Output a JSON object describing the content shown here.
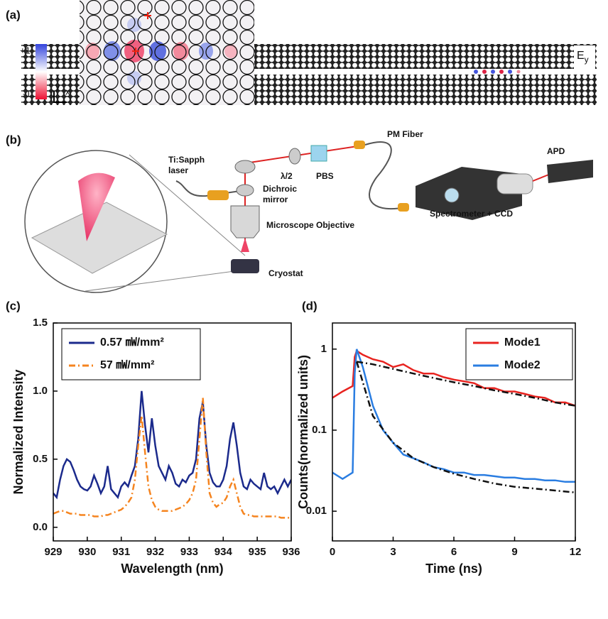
{
  "panel_a": {
    "label": "(a)",
    "colorbar_max": "+1",
    "colorbar_min": "-1",
    "field": "E",
    "field_sub": "y",
    "axis_y": "y",
    "axis_x": "x"
  },
  "panel_b": {
    "label": "(b)",
    "labels": [
      "Ti:Sapph",
      "laser",
      "λ/2",
      "PBS",
      "PM Fiber",
      "APD",
      "Dichroic",
      "mirror",
      "Microscope Objective",
      "Spectrometer + CCD",
      "Cryostat"
    ]
  },
  "chart_data": [
    {
      "type": "line",
      "panel_label": "(c)",
      "x_label": "Wavelength (nm)",
      "y_label": "Normalized Intensity",
      "x": [
        929.0,
        929.1,
        929.2,
        929.3,
        929.4,
        929.5,
        929.6,
        929.7,
        929.8,
        929.9,
        930.0,
        930.1,
        930.2,
        930.3,
        930.4,
        930.5,
        930.6,
        930.7,
        930.8,
        930.9,
        931.0,
        931.1,
        931.2,
        931.3,
        931.4,
        931.5,
        931.6,
        931.7,
        931.8,
        931.9,
        932.0,
        932.1,
        932.2,
        932.3,
        932.4,
        932.5,
        932.6,
        932.7,
        932.8,
        932.9,
        933.0,
        933.1,
        933.2,
        933.3,
        933.4,
        933.5,
        933.6,
        933.7,
        933.8,
        933.9,
        934.0,
        934.1,
        934.2,
        934.3,
        934.4,
        934.5,
        934.6,
        934.7,
        934.8,
        934.9,
        935.0,
        935.1,
        935.2,
        935.3,
        935.4,
        935.5,
        935.6,
        935.7,
        935.8,
        935.9,
        936.0
      ],
      "series": [
        {
          "name": "0.57 ㎽/mm²",
          "color": "#1b2a8c",
          "dash": "solid",
          "values": [
            0.25,
            0.22,
            0.35,
            0.45,
            0.5,
            0.48,
            0.42,
            0.35,
            0.3,
            0.28,
            0.27,
            0.3,
            0.38,
            0.32,
            0.25,
            0.3,
            0.45,
            0.28,
            0.25,
            0.22,
            0.3,
            0.33,
            0.3,
            0.38,
            0.45,
            0.65,
            1.0,
            0.75,
            0.55,
            0.8,
            0.6,
            0.45,
            0.4,
            0.35,
            0.45,
            0.4,
            0.32,
            0.3,
            0.35,
            0.33,
            0.38,
            0.4,
            0.5,
            0.8,
            0.92,
            0.6,
            0.4,
            0.33,
            0.3,
            0.3,
            0.35,
            0.45,
            0.65,
            0.77,
            0.6,
            0.4,
            0.3,
            0.28,
            0.35,
            0.32,
            0.3,
            0.28,
            0.4,
            0.3,
            0.28,
            0.3,
            0.25,
            0.3,
            0.35,
            0.3,
            0.35
          ]
        },
        {
          "name": "57 ㎽/mm²",
          "color": "#f5841f",
          "dash": "dashdot",
          "values": [
            0.1,
            0.11,
            0.12,
            0.12,
            0.11,
            0.1,
            0.1,
            0.1,
            0.09,
            0.09,
            0.09,
            0.09,
            0.08,
            0.08,
            0.08,
            0.09,
            0.09,
            0.1,
            0.11,
            0.12,
            0.13,
            0.15,
            0.18,
            0.22,
            0.35,
            0.6,
            0.82,
            0.55,
            0.3,
            0.2,
            0.15,
            0.13,
            0.12,
            0.12,
            0.12,
            0.12,
            0.13,
            0.14,
            0.15,
            0.17,
            0.2,
            0.25,
            0.35,
            0.65,
            0.95,
            0.55,
            0.25,
            0.18,
            0.15,
            0.17,
            0.18,
            0.22,
            0.3,
            0.35,
            0.25,
            0.15,
            0.1,
            0.09,
            0.09,
            0.08,
            0.08,
            0.08,
            0.08,
            0.08,
            0.08,
            0.08,
            0.08,
            0.07,
            0.07,
            0.07,
            0.07
          ]
        }
      ],
      "xlim": [
        929,
        936
      ],
      "xticks": [
        929,
        930,
        931,
        932,
        933,
        934,
        935,
        936
      ],
      "ylim": [
        -0.1,
        1.5
      ],
      "yticks": [
        {
          "value": 0,
          "label": "0.0"
        },
        0.5,
        {
          "value": 1,
          "label": "1.0"
        },
        1.5
      ],
      "legend": "upper left"
    },
    {
      "type": "line",
      "panel_label": "(d)",
      "x_label": "Time (ns)",
      "y_label": "Counts(normalized units)",
      "log_y": true,
      "x": [
        0,
        0.5,
        1.0,
        1.1,
        1.2,
        1.5,
        2,
        2.5,
        3,
        3.5,
        4,
        4.5,
        5,
        5.5,
        6,
        6.5,
        7,
        7.5,
        8,
        8.5,
        9,
        9.5,
        10,
        10.5,
        11,
        11.5,
        12
      ],
      "series": [
        {
          "name": "Mode1",
          "color": "#e8231f",
          "dash": "solid",
          "values": [
            0.25,
            0.3,
            0.35,
            0.8,
            0.95,
            0.85,
            0.75,
            0.7,
            0.6,
            0.65,
            0.55,
            0.5,
            0.5,
            0.45,
            0.42,
            0.4,
            0.38,
            0.33,
            0.33,
            0.3,
            0.3,
            0.28,
            0.26,
            0.25,
            0.22,
            0.22,
            0.2
          ]
        },
        {
          "name": "Mode2",
          "color": "#2a7de1",
          "dash": "solid",
          "values": [
            0.03,
            0.025,
            0.03,
            0.5,
            1.0,
            0.6,
            0.2,
            0.1,
            0.07,
            0.05,
            0.045,
            0.04,
            0.035,
            0.033,
            0.03,
            0.03,
            0.028,
            0.028,
            0.027,
            0.026,
            0.026,
            0.025,
            0.025,
            0.024,
            0.024,
            0.023,
            0.023
          ]
        },
        {
          "color": "#111111",
          "dash": "dashdot",
          "x": [
            1.2,
            2,
            3,
            4,
            5,
            6,
            7,
            8,
            9,
            10,
            11,
            12
          ],
          "values": [
            0.7,
            0.65,
            0.57,
            0.5,
            0.44,
            0.39,
            0.35,
            0.31,
            0.28,
            0.25,
            0.22,
            0.2
          ]
        },
        {
          "color": "#111111",
          "dash": "dashdot",
          "x": [
            1.2,
            2,
            3,
            4,
            5,
            6,
            7,
            8,
            9,
            10,
            11,
            12
          ],
          "values": [
            0.7,
            0.15,
            0.07,
            0.045,
            0.035,
            0.029,
            0.025,
            0.022,
            0.02,
            0.019,
            0.018,
            0.017
          ]
        }
      ],
      "xlim": [
        0,
        12
      ],
      "xticks": [
        0,
        3,
        6,
        9,
        12
      ],
      "ylim": [
        0.0043,
        2.1
      ],
      "yticks": [
        0.01,
        0.1,
        1
      ],
      "legend": "upper right"
    }
  ]
}
